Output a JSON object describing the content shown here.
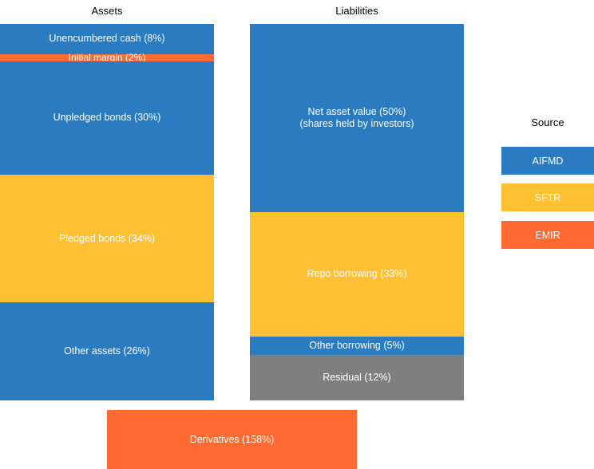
{
  "colors": {
    "AIFMD": "#2a7bbf",
    "SFTR": "#fec134",
    "EMIR": "#ff6b33",
    "Residual": "#7f7f7f"
  },
  "chart_data": {
    "type": "bar",
    "columns": [
      {
        "title": "Assets",
        "segments": [
          {
            "label": "Unencumbered cash (8%)",
            "value": 8,
            "source": "AIFMD"
          },
          {
            "label": "Initial margin (2%)",
            "value": 2,
            "source": "EMIR"
          },
          {
            "label": "Unpledged bonds (30%)",
            "value": 30,
            "source": "AIFMD"
          },
          {
            "label": "Pledged bonds (34%)",
            "value": 34,
            "source": "SFTR"
          },
          {
            "label": "Other assets (26%)",
            "value": 26,
            "source": "AIFMD"
          }
        ]
      },
      {
        "title": "Liabilities",
        "segments": [
          {
            "label": "Net asset value (50%)",
            "sublabel": "(shares held by investors)",
            "value": 50,
            "source": "AIFMD"
          },
          {
            "label": "Repo borrowing (33%)",
            "value": 33,
            "source": "SFTR"
          },
          {
            "label": "Other borrowing (5%)",
            "value": 5,
            "source": "AIFMD"
          },
          {
            "label": "Residual (12%)",
            "value": 12,
            "source": "Residual"
          }
        ]
      }
    ],
    "extra": {
      "label": "Derivatives (158%)",
      "value": 158,
      "source": "EMIR"
    },
    "legend": {
      "title": "Source",
      "items": [
        "AIFMD",
        "SFTR",
        "EMIR"
      ],
      "position": "right"
    }
  }
}
